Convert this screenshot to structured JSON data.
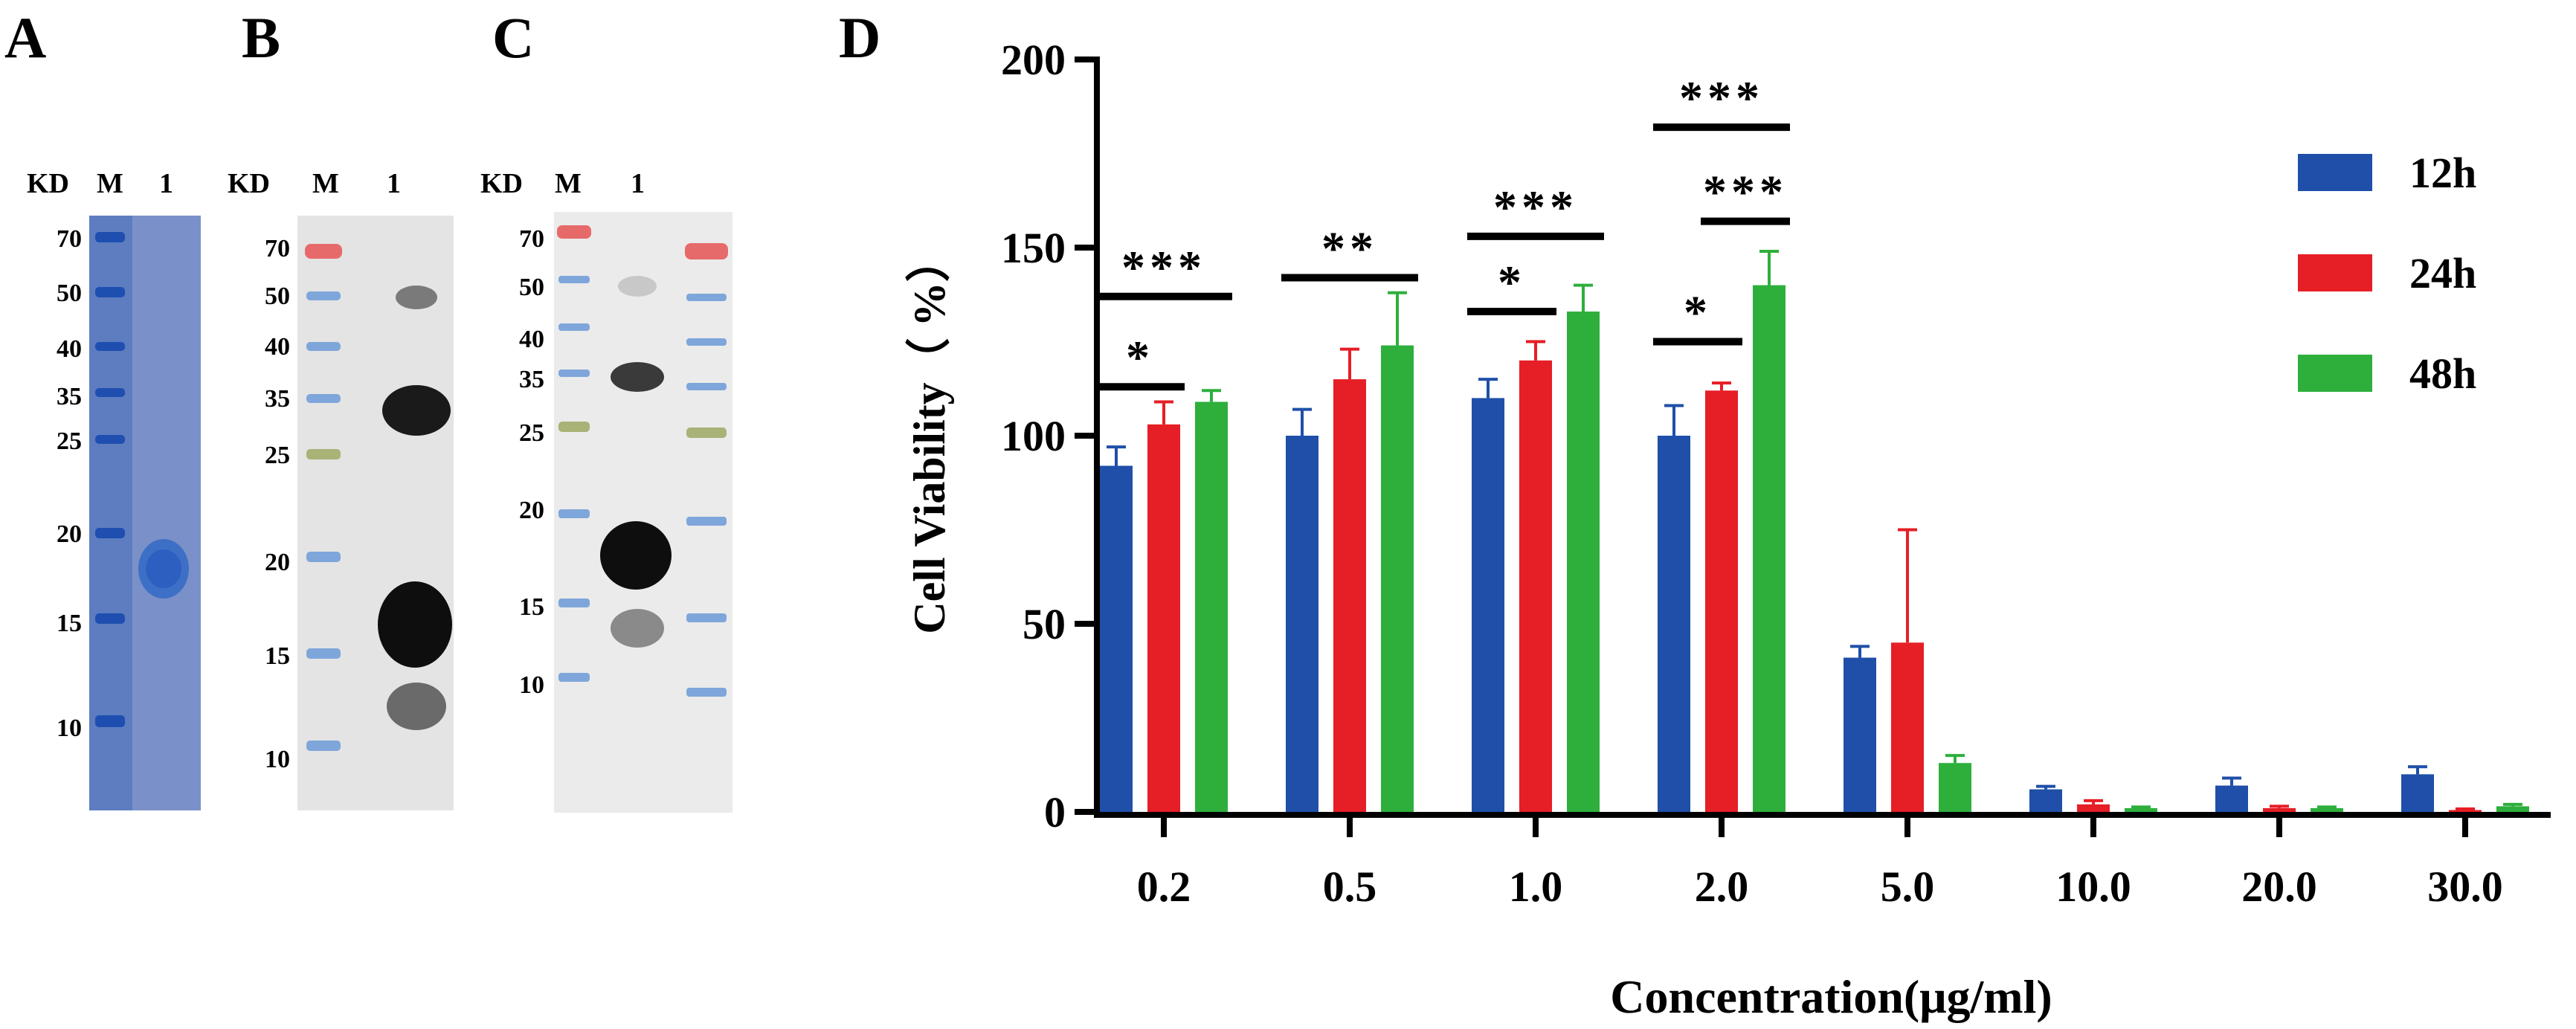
{
  "panels": {
    "A": {
      "letter": "A",
      "kd_label": "KD",
      "lane_m": "M",
      "lane_1": "1",
      "markers": [
        "70",
        "50",
        "40",
        "35",
        "25",
        "20",
        "15",
        "10"
      ],
      "colors": {
        "background": "#7089c4",
        "marker_band": "#1f55b8",
        "sample_band": "#2b60c2"
      }
    },
    "B": {
      "letter": "B",
      "kd_label": "KD",
      "lane_m": "M",
      "lane_1": "1",
      "markers": [
        "70",
        "50",
        "40",
        "35",
        "25",
        "20",
        "15",
        "10"
      ],
      "colors": {
        "background": "#e6e6e6",
        "marker_red": "#e85a5a",
        "marker_blue": "#6b9bd6",
        "marker_green": "#a8b070",
        "signal": "#101010"
      }
    },
    "C": {
      "letter": "C",
      "kd_label": "KD",
      "lane_m": "M",
      "lane_1": "1",
      "markers": [
        "70",
        "50",
        "40",
        "35",
        "25",
        "20",
        "15",
        "10"
      ],
      "colors": {
        "background": "#ececec",
        "marker_red": "#e85a5a",
        "marker_blue": "#6b9bd6",
        "marker_green": "#a8b070",
        "signal": "#101010"
      }
    }
  },
  "chart_data": {
    "panel_letter": "D",
    "type": "bar",
    "title": "",
    "xlabel": "Concentration(μg/ml)",
    "ylabel": "Cell Viability（ %）",
    "ylim": [
      0,
      200
    ],
    "yticks": [
      "0",
      "50",
      "100",
      "150",
      "200"
    ],
    "categories": [
      "0.2",
      "0.5",
      "1.0",
      "2.0",
      "5.0",
      "10.0",
      "20.0",
      "30.0"
    ],
    "legend_position": "top-right",
    "series": [
      {
        "name": "12h",
        "color": "#1f4fa8",
        "values": [
          92,
          100,
          110,
          100,
          41,
          6,
          7,
          10
        ],
        "errors": [
          5,
          7,
          5,
          8,
          3,
          0.8,
          2,
          2
        ]
      },
      {
        "name": "24h",
        "color": "#e61e25",
        "values": [
          103,
          115,
          120,
          112,
          45,
          2,
          1,
          0.5
        ],
        "errors": [
          6,
          8,
          5,
          2,
          30,
          1,
          0.5,
          0.3
        ]
      },
      {
        "name": "48h",
        "color": "#2eaf3c",
        "values": [
          109,
          124,
          133,
          140,
          13,
          1,
          1,
          1.5
        ],
        "errors": [
          3,
          14,
          7,
          9,
          2,
          0.3,
          0.3,
          0.5
        ]
      }
    ],
    "significance": [
      {
        "label": "*",
        "category": "0.2",
        "from": "12h",
        "to": "24h",
        "y": 113
      },
      {
        "label": "***",
        "category": "0.2",
        "from": "12h",
        "to": "48h",
        "y": 137
      },
      {
        "label": "**",
        "category": "0.5",
        "from": "12h",
        "to": "48h",
        "y": 142
      },
      {
        "label": "*",
        "category": "1.0",
        "from": "12h",
        "to": "24h",
        "y": 133
      },
      {
        "label": "***",
        "category": "1.0",
        "from": "12h",
        "to": "48h",
        "y": 153
      },
      {
        "label": "*",
        "category": "2.0",
        "from": "12h",
        "to": "24h",
        "y": 125
      },
      {
        "label": "***",
        "category": "2.0",
        "from": "24h",
        "to": "48h",
        "y": 157
      },
      {
        "label": "***",
        "category": "2.0",
        "from": "12h",
        "to": "48h",
        "y": 182
      }
    ]
  }
}
